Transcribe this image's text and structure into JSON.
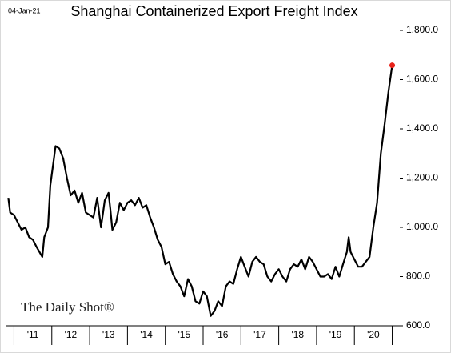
{
  "chart_data": {
    "type": "line",
    "title": "Shanghai Containerized Export Freight Index",
    "date_label": "04-Jan-21",
    "source": "The Daily Shot®",
    "color": "#000000",
    "end_marker_color": "#e8231b",
    "x": [
      2010.85,
      2010.9,
      2011.0,
      2011.1,
      2011.2,
      2011.3,
      2011.4,
      2011.5,
      2011.6,
      2011.75,
      2011.8,
      2011.9,
      2011.96,
      2012.1,
      2012.2,
      2012.3,
      2012.4,
      2012.5,
      2012.6,
      2012.7,
      2012.8,
      2012.9,
      2013.0,
      2013.1,
      2013.2,
      2013.3,
      2013.4,
      2013.5,
      2013.55,
      2013.6,
      2013.7,
      2013.8,
      2013.9,
      2014.0,
      2014.1,
      2014.2,
      2014.3,
      2014.4,
      2014.5,
      2014.6,
      2014.7,
      2014.8,
      2014.9,
      2015.0,
      2015.1,
      2015.2,
      2015.3,
      2015.4,
      2015.5,
      2015.6,
      2015.7,
      2015.8,
      2015.9,
      2016.0,
      2016.1,
      2016.2,
      2016.3,
      2016.4,
      2016.5,
      2016.6,
      2016.7,
      2016.8,
      2016.9,
      2017.0,
      2017.1,
      2017.2,
      2017.3,
      2017.4,
      2017.5,
      2017.6,
      2017.7,
      2017.8,
      2017.9,
      2018.0,
      2018.1,
      2018.2,
      2018.3,
      2018.4,
      2018.5,
      2018.6,
      2018.7,
      2018.8,
      2018.9,
      2019.0,
      2019.1,
      2019.2,
      2019.3,
      2019.4,
      2019.5,
      2019.6,
      2019.7,
      2019.8,
      2019.85,
      2019.9,
      2020.0,
      2020.1,
      2020.2,
      2020.3,
      2020.4,
      2020.5,
      2020.6,
      2020.7,
      2020.8,
      2020.9,
      2021.0
    ],
    "values": [
      1120,
      1060,
      1050,
      1020,
      990,
      1000,
      960,
      950,
      920,
      880,
      960,
      1000,
      1170,
      1330,
      1320,
      1280,
      1200,
      1130,
      1150,
      1100,
      1140,
      1060,
      1050,
      1040,
      1120,
      1000,
      1110,
      1140,
      1070,
      990,
      1020,
      1100,
      1070,
      1100,
      1110,
      1090,
      1120,
      1080,
      1090,
      1040,
      1000,
      950,
      920,
      850,
      860,
      810,
      780,
      760,
      720,
      790,
      760,
      700,
      690,
      740,
      720,
      640,
      660,
      700,
      680,
      760,
      780,
      770,
      830,
      880,
      840,
      800,
      860,
      880,
      860,
      850,
      800,
      780,
      810,
      830,
      800,
      780,
      830,
      850,
      840,
      870,
      830,
      880,
      860,
      830,
      800,
      800,
      810,
      790,
      840,
      800,
      850,
      900,
      960,
      900,
      870,
      840,
      840,
      860,
      880,
      1000,
      1100,
      1300,
      1420,
      1550,
      1658
    ],
    "xlim": [
      2010.8,
      2021.2
    ],
    "xticks": [
      2011,
      2012,
      2013,
      2014,
      2015,
      2016,
      2017,
      2018,
      2019,
      2020,
      2021
    ],
    "year_labels": [
      "'11",
      "'12",
      "'13",
      "'14",
      "'15",
      "'16",
      "'17",
      "'18",
      "'19",
      "'20"
    ],
    "ylim": [
      600,
      1800
    ],
    "yticks": [
      {
        "value": 600,
        "label": "600.0"
      },
      {
        "value": 800,
        "label": "800.0"
      },
      {
        "value": 1000,
        "label": "1,000.0"
      },
      {
        "value": 1200,
        "label": "1,200.0"
      },
      {
        "value": 1400,
        "label": "1,400.0"
      },
      {
        "value": 1600,
        "label": "1,600.0"
      },
      {
        "value": 1800,
        "label": "1,800.0"
      }
    ]
  }
}
